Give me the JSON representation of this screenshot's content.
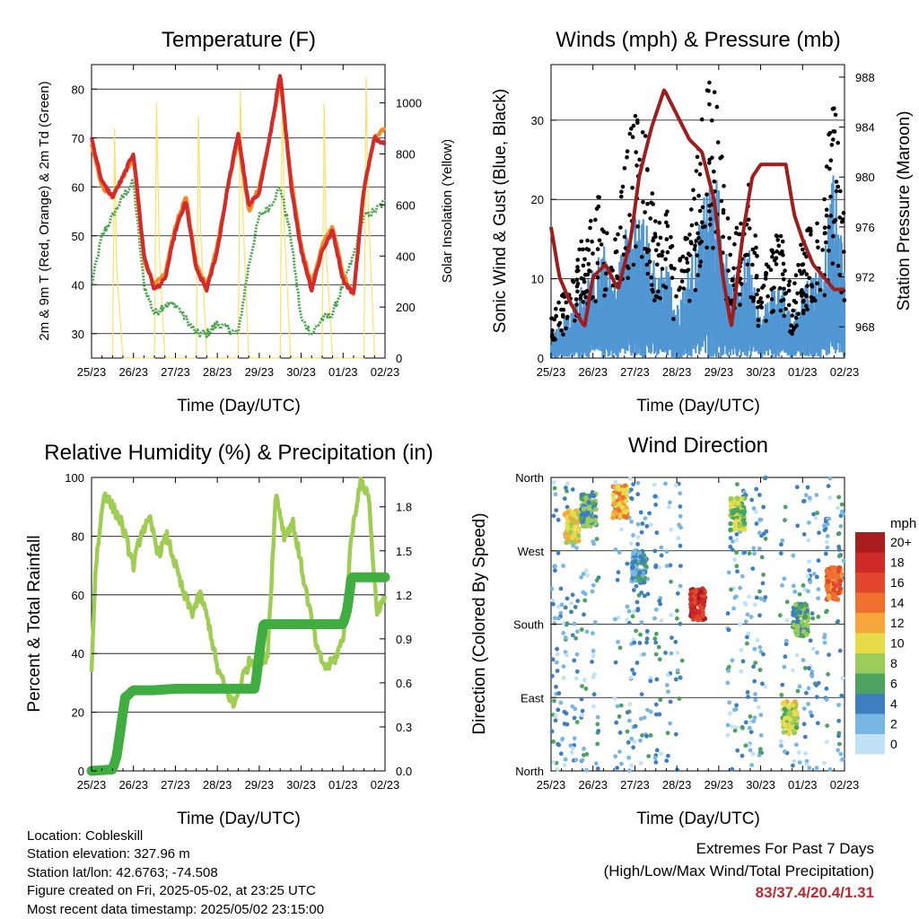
{
  "charts": {
    "temperature": {
      "title": "Temperature (F)",
      "ylabel": "2m & 9m T (Red, Orange) & 2m Td (Green)",
      "y2label": "Solar Insolation (Yellow)",
      "xlabel": "Time (Day/UTC)"
    },
    "winds": {
      "title": "Winds (mph) & Pressure (mb)",
      "ylabel": "Sonic Wind & Gust (Blue, Black)",
      "y2label": "Station Pressure (Maroon)",
      "xlabel": "Time (Day/UTC)"
    },
    "humidity": {
      "title": "Relative Humidity (%) & Precipitation (in)",
      "ylabel": "Percent & Total Rainfall",
      "xlabel": "Time (Day/UTC)"
    },
    "direction": {
      "title": "Wind Direction",
      "ylabel": "Direction (Colored By Speed)",
      "xlabel": "Time (Day/UTC)",
      "legend_title": "mph"
    }
  },
  "chart_data": [
    {
      "id": "temperature",
      "type": "line",
      "title": "Temperature (F)",
      "xlabel": "Time (Day/UTC)",
      "ylabel": "2m & 9m T (Red, Orange) & 2m Td (Green)",
      "y2label": "Solar Insolation (Yellow)",
      "x_ticks": [
        "25/23",
        "26/23",
        "27/23",
        "28/23",
        "29/23",
        "30/23",
        "01/23",
        "02/23"
      ],
      "xlim": [
        0,
        7
      ],
      "ylim": [
        25,
        85
      ],
      "y_ticks": [
        30,
        40,
        50,
        60,
        70,
        80
      ],
      "y2lim": [
        0,
        1150
      ],
      "y2_ticks": [
        0,
        200,
        400,
        600,
        800,
        1000
      ],
      "grid": true,
      "series": [
        {
          "axis": "left",
          "color": "#f28c28",
          "x": [
            0,
            0.25,
            0.5,
            0.75,
            1.0,
            1.25,
            1.5,
            1.75,
            2.0,
            2.25,
            2.5,
            2.75,
            3.0,
            3.25,
            3.5,
            3.75,
            4.0,
            4.25,
            4.5,
            4.75,
            5.0,
            5.25,
            5.5,
            5.75,
            6.0,
            6.25,
            6.5,
            6.75,
            7.0
          ],
          "y": [
            69,
            60,
            58,
            62,
            66,
            45,
            40,
            42,
            52,
            58,
            44,
            40,
            48,
            60,
            70,
            55,
            60,
            70,
            82,
            62,
            48,
            40,
            48,
            52,
            42,
            38,
            60,
            70,
            72
          ]
        },
        {
          "axis": "left",
          "color": "#d42a2a",
          "x": [
            0,
            0.25,
            0.5,
            0.75,
            1.0,
            1.25,
            1.5,
            1.75,
            2.0,
            2.25,
            2.5,
            2.75,
            3.0,
            3.25,
            3.5,
            3.75,
            4.0,
            4.25,
            4.5,
            4.75,
            5.0,
            5.25,
            5.5,
            5.75,
            6.0,
            6.25,
            6.5,
            6.75,
            7.0
          ],
          "y": [
            70,
            61,
            58,
            62,
            67,
            46,
            39,
            41,
            51,
            57,
            43,
            39,
            47,
            60,
            71,
            56,
            59,
            70,
            83,
            61,
            47,
            39,
            47,
            51,
            41,
            38,
            60,
            70,
            69
          ]
        },
        {
          "axis": "left",
          "color": "#45a64a",
          "x": [
            0,
            0.25,
            0.5,
            0.75,
            1.0,
            1.25,
            1.5,
            1.75,
            2.0,
            2.25,
            2.5,
            2.75,
            3.0,
            3.25,
            3.5,
            3.75,
            4.0,
            4.25,
            4.5,
            4.75,
            5.0,
            5.25,
            5.5,
            5.75,
            6.0,
            6.25,
            6.5,
            6.75,
            7.0
          ],
          "y": [
            40,
            50,
            54,
            58,
            61,
            40,
            34,
            36,
            36,
            33,
            30,
            30,
            32,
            31,
            30,
            44,
            54,
            56,
            60,
            50,
            33,
            30,
            33,
            34,
            40,
            46,
            54,
            55,
            57
          ]
        },
        {
          "axis": "right",
          "color": "#ffe066",
          "x": [
            0.5,
            0.55,
            0.6,
            0.75,
            1.5,
            1.55,
            1.62,
            1.75,
            2.5,
            2.55,
            2.6,
            2.75,
            3.5,
            3.55,
            3.6,
            3.75,
            4.5,
            4.55,
            4.6,
            4.75,
            5.5,
            5.55,
            5.6,
            5.75,
            6.5,
            6.55,
            6.6,
            6.75
          ],
          "y": [
            0,
            900,
            350,
            0,
            0,
            1000,
            400,
            0,
            0,
            950,
            500,
            0,
            0,
            1050,
            600,
            0,
            0,
            1100,
            500,
            0,
            0,
            1000,
            400,
            0,
            0,
            1100,
            600,
            0
          ]
        }
      ]
    },
    {
      "id": "winds",
      "type": "scatter",
      "title": "Winds (mph) & Pressure (mb)",
      "xlabel": "Time (Day/UTC)",
      "ylabel": "Sonic Wind & Gust (Blue, Black)",
      "y2label": "Station Pressure (Maroon)",
      "x_ticks": [
        "25/23",
        "26/23",
        "27/23",
        "28/23",
        "29/23",
        "30/23",
        "01/23",
        "02/23"
      ],
      "xlim": [
        0,
        7
      ],
      "ylim": [
        0,
        37
      ],
      "y_ticks": [
        0,
        10,
        20,
        30
      ],
      "y2lim": [
        965.5,
        989
      ],
      "y2_ticks": [
        968,
        972,
        976,
        980,
        984,
        988
      ],
      "grid": true,
      "series": [
        {
          "name": "",
          "color": "#000000",
          "kind": "gust",
          "x": [
            0,
            0.25,
            0.5,
            0.75,
            1.0,
            1.25,
            1.5,
            1.75,
            2.0,
            2.25,
            2.5,
            2.75,
            3.0,
            3.25,
            3.5,
            3.75,
            4.0,
            4.25,
            4.5,
            4.75,
            5.0,
            5.25,
            5.5,
            5.75,
            6.0,
            6.25,
            6.5,
            6.75,
            7.0
          ],
          "y": [
            4,
            6,
            8,
            12,
            14,
            18,
            12,
            20,
            24,
            22,
            14,
            16,
            8,
            14,
            20,
            28,
            26,
            12,
            14,
            18,
            6,
            12,
            12,
            6,
            12,
            14,
            16,
            28,
            14
          ]
        },
        {
          "name": "",
          "color": "#4f96d3",
          "kind": "wind",
          "x": [
            0,
            0.25,
            0.5,
            0.75,
            1.0,
            1.25,
            1.5,
            1.75,
            2.0,
            2.25,
            2.5,
            2.75,
            3.0,
            3.25,
            3.5,
            3.75,
            4.0,
            4.25,
            4.5,
            4.75,
            5.0,
            5.25,
            5.5,
            5.75,
            6.0,
            6.25,
            6.5,
            6.75,
            7.0
          ],
          "y": [
            2,
            3,
            4,
            6,
            7,
            9,
            6,
            10,
            12,
            11,
            7,
            8,
            4,
            7,
            10,
            15,
            14,
            6,
            7,
            9,
            3,
            6,
            6,
            3,
            6,
            7,
            8,
            15,
            7
          ]
        },
        {
          "name": "",
          "color": "#a11c1c",
          "kind": "pressure",
          "axis": "right",
          "x": [
            0,
            0.2,
            0.45,
            0.8,
            1.0,
            1.3,
            1.6,
            1.9,
            2.1,
            2.4,
            2.7,
            3.0,
            3.3,
            3.6,
            3.9,
            4.1,
            4.3,
            4.6,
            4.8,
            5.0,
            5.3,
            5.6,
            5.8,
            6.0,
            6.25,
            6.5,
            6.75,
            7.0
          ],
          "y": [
            976,
            972,
            970,
            968,
            972,
            973,
            971,
            975,
            980,
            984,
            987,
            985,
            983,
            982,
            978,
            972,
            968,
            976,
            980,
            981,
            981,
            981,
            977,
            975,
            973,
            972,
            971,
            971
          ]
        }
      ]
    },
    {
      "id": "humidity",
      "type": "line",
      "title": "Relative Humidity (%) & Precipitation (in)",
      "xlabel": "Time (Day/UTC)",
      "ylabel": "Percent & Total Rainfall",
      "x_ticks": [
        "25/23",
        "26/23",
        "27/23",
        "28/23",
        "29/23",
        "30/23",
        "01/23",
        "02/23"
      ],
      "xlim": [
        0,
        7
      ],
      "ylim": [
        0,
        100
      ],
      "y_ticks": [
        0,
        20,
        40,
        60,
        80,
        100
      ],
      "y2lim": [
        0,
        2.0
      ],
      "y2_ticks": [
        "0.0",
        "0.3",
        "0.6",
        "0.9",
        "1.2",
        "1.5",
        "1.8"
      ],
      "grid": true,
      "series": [
        {
          "axis": "left",
          "color": "#9fcd52",
          "x": [
            0,
            0.1,
            0.3,
            0.5,
            0.7,
            0.9,
            1.0,
            1.2,
            1.4,
            1.6,
            1.8,
            2.0,
            2.2,
            2.4,
            2.6,
            2.8,
            3.0,
            3.2,
            3.4,
            3.6,
            3.8,
            4.0,
            4.2,
            4.4,
            4.6,
            4.8,
            5.0,
            5.2,
            5.4,
            5.6,
            5.8,
            6.0,
            6.2,
            6.4,
            6.6,
            6.8,
            7.0
          ],
          "y": [
            35,
            70,
            95,
            90,
            85,
            75,
            70,
            82,
            85,
            74,
            80,
            70,
            60,
            54,
            60,
            50,
            35,
            28,
            22,
            32,
            38,
            35,
            40,
            95,
            80,
            85,
            70,
            55,
            40,
            35,
            38,
            45,
            80,
            98,
            95,
            55,
            58
          ]
        },
        {
          "axis": "right",
          "color": "#3fad3f",
          "x": [
            0,
            0.5,
            0.6,
            0.7,
            0.8,
            1.0,
            1.5,
            2.0,
            2.5,
            3.0,
            3.5,
            3.9,
            4.0,
            4.1,
            4.5,
            5.0,
            5.5,
            6.0,
            6.1,
            6.2,
            6.5,
            7.0
          ],
          "y": [
            0,
            0.01,
            0.1,
            0.3,
            0.5,
            0.55,
            0.55,
            0.56,
            0.56,
            0.56,
            0.56,
            0.56,
            0.8,
            1.0,
            1.0,
            1.0,
            1.0,
            1.0,
            1.1,
            1.32,
            1.32,
            1.32
          ]
        }
      ]
    },
    {
      "id": "direction",
      "type": "scatter",
      "title": "Wind Direction",
      "xlabel": "Time (Day/UTC)",
      "ylabel": "Direction (Colored By Speed)",
      "x_ticks": [
        "25/23",
        "26/23",
        "27/23",
        "28/23",
        "29/23",
        "30/23",
        "01/23",
        "02/23"
      ],
      "xlim": [
        0,
        7
      ],
      "y_ticks": [
        "North",
        "West",
        "South",
        "East",
        "North"
      ],
      "ylim": [
        0,
        360
      ],
      "grid": true,
      "legend": {
        "title": "mph",
        "placement": "right",
        "labels": [
          "20+",
          "18",
          "16",
          "14",
          "12",
          "10",
          "8",
          "6",
          "4",
          "2",
          "0"
        ],
        "colors": [
          "#a81e1e",
          "#cf2a27",
          "#e2462d",
          "#f07030",
          "#f6a63a",
          "#e5dc48",
          "#9bcc5a",
          "#4aa460",
          "#3f7fbf",
          "#78b6e3",
          "#bfe2f6"
        ]
      },
      "clusters": [
        {
          "x": 0.5,
          "dir": 300,
          "speed": 10
        },
        {
          "x": 0.9,
          "dir": 320,
          "speed": 6
        },
        {
          "x": 1.65,
          "dir": 330,
          "speed": 12
        },
        {
          "x": 2.1,
          "dir": 250,
          "speed": 4
        },
        {
          "x": 3.5,
          "dir": 205,
          "speed": 18
        },
        {
          "x": 4.45,
          "dir": 315,
          "speed": 8
        },
        {
          "x": 5.7,
          "dir": 65,
          "speed": 9
        },
        {
          "x": 5.95,
          "dir": 185,
          "speed": 6
        },
        {
          "x": 6.75,
          "dir": 230,
          "speed": 14
        }
      ]
    }
  ],
  "footer": {
    "location": "Location: Cobleskill",
    "elevation": "Station elevation: 327.96 m",
    "latlon": "Station lat/lon: 42.6763; -74.508",
    "created": "Figure created on Fri, 2025-05-02, at 23:25 UTC",
    "timestamp": "Most recent data timestamp: 2025/05/02 23:15:00"
  },
  "extremes": {
    "heading": "Extremes For Past 7 Days",
    "subheading": "(High/Low/Max Wind/Total Precipitation)",
    "values": "83/37.4/20.4/1.31"
  }
}
